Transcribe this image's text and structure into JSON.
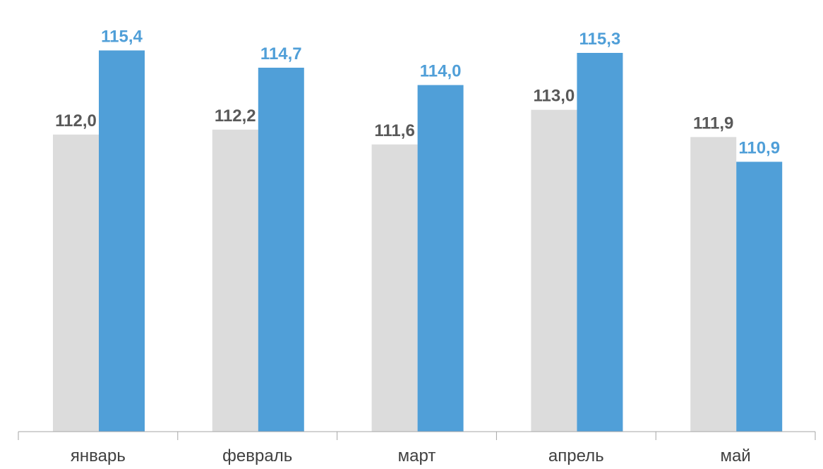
{
  "chart_data": {
    "type": "bar",
    "categories": [
      "январь",
      "февраль",
      "март",
      "апрель",
      "май"
    ],
    "series": [
      {
        "values": [
          112.0,
          112.2,
          111.6,
          113.0,
          111.9
        ],
        "color": "#dcdcdc",
        "label_color": "#595959"
      },
      {
        "values": [
          115.4,
          114.7,
          114.0,
          115.3,
          110.9
        ],
        "color": "#509fd8",
        "label_color": "#509fd8"
      }
    ],
    "data_labels": [
      [
        "112,0",
        "112,2",
        "111,6",
        "113,0",
        "111,9"
      ],
      [
        "115,4",
        "114,7",
        "114,0",
        "115,3",
        "110,9"
      ]
    ],
    "title": "",
    "xlabel": "",
    "ylabel": "",
    "ylim": [
      100,
      116.2
    ],
    "grid": false,
    "legend": "none",
    "y_axis_visible": false
  }
}
